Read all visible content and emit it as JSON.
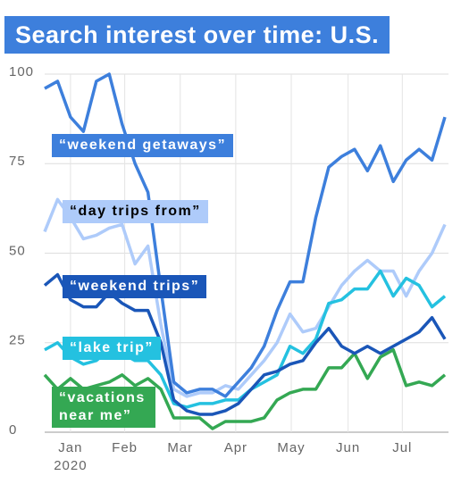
{
  "chart_data": {
    "type": "line",
    "title": "Search interest over time: U.S.",
    "xlim": [
      0,
      31
    ],
    "xticks": [
      {
        "value": 2,
        "label": "Jan"
      },
      {
        "value": 6.2,
        "label": "Feb"
      },
      {
        "value": 10.5,
        "label": "Mar"
      },
      {
        "value": 14.8,
        "label": "Apr"
      },
      {
        "value": 19.1,
        "label": "May"
      },
      {
        "value": 23.5,
        "label": "Jun"
      },
      {
        "value": 27.7,
        "label": "Jul"
      }
    ],
    "x_year_label": "2020",
    "ylim": [
      0,
      100
    ],
    "yticks": [
      0,
      25,
      50,
      75,
      100
    ],
    "grid": true,
    "series": [
      {
        "name": "“day trips from”",
        "color": "#aecbfa",
        "values": [
          56,
          65,
          60,
          54,
          55,
          57,
          58,
          47,
          52,
          30,
          12,
          10,
          11,
          11,
          13,
          12,
          16,
          20,
          25,
          33,
          28,
          29,
          35,
          41,
          45,
          48,
          45,
          45,
          38,
          45,
          50,
          58
        ]
      },
      {
        "name": "“vacations near me”",
        "color": "#34a853",
        "values": [
          16,
          12,
          15,
          12,
          13,
          14,
          16,
          13,
          15,
          12,
          4,
          4,
          4,
          1,
          3,
          3,
          3,
          4,
          9,
          11,
          12,
          12,
          18,
          18,
          22,
          15,
          21,
          23,
          13,
          14,
          13,
          16
        ]
      },
      {
        "name": "“lake trip”",
        "color": "#24c1e0",
        "values": [
          23,
          25,
          21,
          19,
          20,
          23,
          22,
          20,
          20,
          16,
          8,
          7,
          8,
          8,
          9,
          9,
          12,
          14,
          16,
          24,
          22,
          26,
          36,
          37,
          40,
          40,
          45,
          38,
          43,
          41,
          35,
          38
        ]
      },
      {
        "name": "“weekend trips”",
        "color": "#1a56b8",
        "values": [
          41,
          44,
          37,
          35,
          35,
          39,
          36,
          34,
          34,
          25,
          9,
          6,
          5,
          5,
          6,
          8,
          12,
          16,
          17,
          19,
          20,
          25,
          29,
          24,
          22,
          24,
          22,
          24,
          26,
          28,
          32,
          26
        ]
      },
      {
        "name": "“weekend getaways”",
        "color": "#3d7fdc",
        "values": [
          96,
          98,
          88,
          84,
          98,
          100,
          86,
          75,
          67,
          40,
          14,
          11,
          12,
          12,
          10,
          14,
          18,
          24,
          34,
          42,
          42,
          60,
          74,
          77,
          79,
          73,
          80,
          70,
          76,
          79,
          76,
          88
        ]
      }
    ]
  }
}
